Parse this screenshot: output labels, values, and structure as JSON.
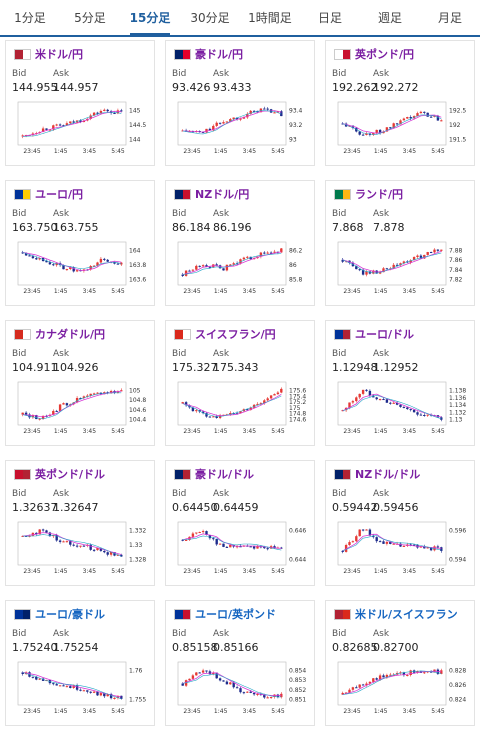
{
  "tabs": [
    "1分足",
    "5分足",
    "15分足",
    "30分足",
    "1時間足",
    "日足",
    "週足",
    "月足"
  ],
  "active_tab": 2,
  "labels": {
    "bid": "Bid",
    "ask": "Ask"
  },
  "x_ticks": [
    "23:45",
    "1:45",
    "3:45",
    "5:45"
  ],
  "cards": [
    {
      "name": "米ドル/円",
      "color": "purple",
      "flag": [
        "#b22234",
        "#ffffff"
      ],
      "bid": "144.955",
      "ask": "144.957",
      "yticks": [
        "145",
        "144.5",
        "144"
      ],
      "trend": [
        0.15,
        0.35,
        0.45,
        0.6,
        0.85,
        0.8
      ]
    },
    {
      "name": "豪ドル/円",
      "color": "purple",
      "flag": [
        "#012169",
        "#e4002b"
      ],
      "bid": "93.426",
      "ask": "93.433",
      "yticks": [
        "93.4",
        "93.2",
        "93"
      ],
      "trend": [
        0.3,
        0.25,
        0.55,
        0.7,
        0.9,
        0.75
      ]
    },
    {
      "name": "英ポンド/円",
      "color": "purple",
      "flag": [
        "#ffffff",
        "#c8102e"
      ],
      "bid": "192.262",
      "ask": "192.272",
      "yticks": [
        "192.5",
        "192",
        "191.5"
      ],
      "trend": [
        0.5,
        0.2,
        0.3,
        0.55,
        0.8,
        0.6
      ]
    },
    {
      "name": "ユーロ/円",
      "color": "purple",
      "flag": [
        "#003399",
        "#ffcc00"
      ],
      "bid": "163.750",
      "ask": "163.755",
      "yticks": [
        "164",
        "163.8",
        "163.6"
      ],
      "trend": [
        0.8,
        0.6,
        0.4,
        0.25,
        0.6,
        0.5
      ]
    },
    {
      "name": "NZドル/円",
      "color": "purple",
      "flag": [
        "#012169",
        "#c8102e"
      ],
      "bid": "86.184",
      "ask": "86.196",
      "yticks": [
        "86.2",
        "86",
        "85.8"
      ],
      "trend": [
        0.2,
        0.5,
        0.35,
        0.6,
        0.75,
        0.85
      ]
    },
    {
      "name": "ランド/円",
      "color": "purple",
      "flag": [
        "#007a4d",
        "#ffb612"
      ],
      "bid": "7.868",
      "ask": "7.878",
      "yticks": [
        "7.88",
        "7.86",
        "7.84",
        "7.82"
      ],
      "trend": [
        0.6,
        0.25,
        0.3,
        0.5,
        0.7,
        0.9
      ]
    },
    {
      "name": "カナダドル/円",
      "color": "purple",
      "flag": [
        "#d52b1e",
        "#ffffff"
      ],
      "bid": "104.911",
      "ask": "104.926",
      "yticks": [
        "105",
        "104.8",
        "104.6",
        "104.4"
      ],
      "trend": [
        0.2,
        0.1,
        0.45,
        0.65,
        0.8,
        0.85
      ]
    },
    {
      "name": "スイスフラン/円",
      "color": "purple",
      "flag": [
        "#da291c",
        "#ffffff"
      ],
      "bid": "175.327",
      "ask": "175.343",
      "yticks": [
        "175.6",
        "175.4",
        "175.2",
        "175",
        "174.8",
        "174.6"
      ],
      "trend": [
        0.5,
        0.2,
        0.15,
        0.3,
        0.55,
        0.85
      ]
    },
    {
      "name": "ユーロ/ドル",
      "color": "purple",
      "flag": [
        "#003399",
        "#b22234"
      ],
      "bid": "1.12948",
      "ask": "1.12952",
      "yticks": [
        "1.138",
        "1.136",
        "1.134",
        "1.132",
        "1.13"
      ],
      "trend": [
        0.3,
        0.85,
        0.6,
        0.4,
        0.2,
        0.1
      ]
    },
    {
      "name": "英ポンド/ドル",
      "color": "purple",
      "flag": [
        "#c8102e",
        "#b22234"
      ],
      "bid": "1.32637",
      "ask": "1.32647",
      "yticks": [
        "1.332",
        "1.33",
        "1.328"
      ],
      "trend": [
        0.7,
        0.85,
        0.55,
        0.45,
        0.3,
        0.15
      ]
    },
    {
      "name": "豪ドル/ドル",
      "color": "purple",
      "flag": [
        "#012169",
        "#b22234"
      ],
      "bid": "0.64450",
      "ask": "0.64459",
      "yticks": [
        "0.646",
        "0.644"
      ],
      "trend": [
        0.6,
        0.85,
        0.4,
        0.45,
        0.4,
        0.35
      ]
    },
    {
      "name": "NZドル/ドル",
      "color": "purple",
      "flag": [
        "#012169",
        "#b22234"
      ],
      "bid": "0.59442",
      "ask": "0.59456",
      "yticks": [
        "0.596",
        "0.594"
      ],
      "trend": [
        0.3,
        0.9,
        0.5,
        0.45,
        0.4,
        0.35
      ]
    },
    {
      "name": "ユーロ/豪ドル",
      "color": "blue",
      "flag": [
        "#003399",
        "#012169"
      ],
      "bid": "1.75240",
      "ask": "1.75254",
      "yticks": [
        "1.76",
        "1.755"
      ],
      "trend": [
        0.8,
        0.6,
        0.45,
        0.35,
        0.2,
        0.1
      ]
    },
    {
      "name": "ユーロ/英ポンド",
      "color": "blue",
      "flag": [
        "#003399",
        "#c8102e"
      ],
      "bid": "0.85158",
      "ask": "0.85166",
      "yticks": [
        "0.854",
        "0.853",
        "0.852",
        "0.851"
      ],
      "trend": [
        0.5,
        0.9,
        0.6,
        0.3,
        0.15,
        0.2
      ]
    },
    {
      "name": "米ドル/スイスフラン",
      "color": "blue",
      "flag": [
        "#b22234",
        "#da291c"
      ],
      "bid": "0.82685",
      "ask": "0.82700",
      "yticks": [
        "0.828",
        "0.826",
        "0.824"
      ],
      "trend": [
        0.2,
        0.5,
        0.7,
        0.75,
        0.85,
        0.8
      ]
    }
  ]
}
